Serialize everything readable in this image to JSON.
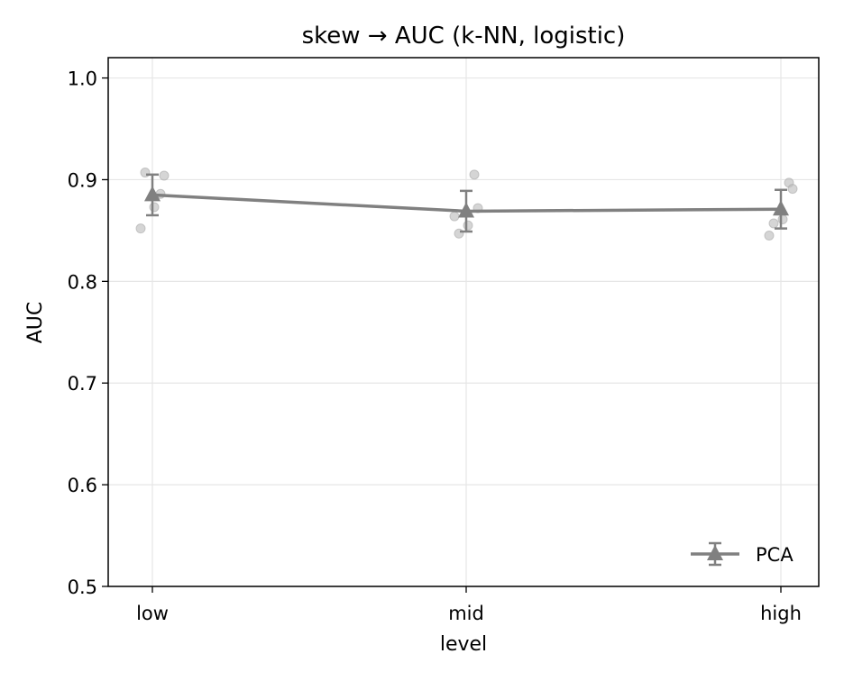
{
  "chart_data": {
    "type": "line",
    "title": "skew → AUC (k-NN, logistic)",
    "xlabel": "level",
    "ylabel": "AUC",
    "categories": [
      "low",
      "mid",
      "high"
    ],
    "ylim": [
      0.5,
      1.02
    ],
    "yticks": [
      0.5,
      0.6,
      0.7,
      0.8,
      0.9,
      1.0
    ],
    "ytick_labels": [
      "0.5",
      "0.6",
      "0.7",
      "0.8",
      "0.9",
      "1.0"
    ],
    "grid": true,
    "legend_position": "lower-right",
    "series": [
      {
        "name": "PCA",
        "color": "#808080",
        "marker": "triangle",
        "values": [
          0.885,
          0.869,
          0.871
        ],
        "error": [
          0.02,
          0.02,
          0.019
        ],
        "points": [
          [
            0.852,
            0.907,
            0.873,
            0.886,
            0.904
          ],
          [
            0.864,
            0.847,
            0.855,
            0.905,
            0.872
          ],
          [
            0.845,
            0.857,
            0.861,
            0.897,
            0.891
          ]
        ]
      }
    ]
  }
}
